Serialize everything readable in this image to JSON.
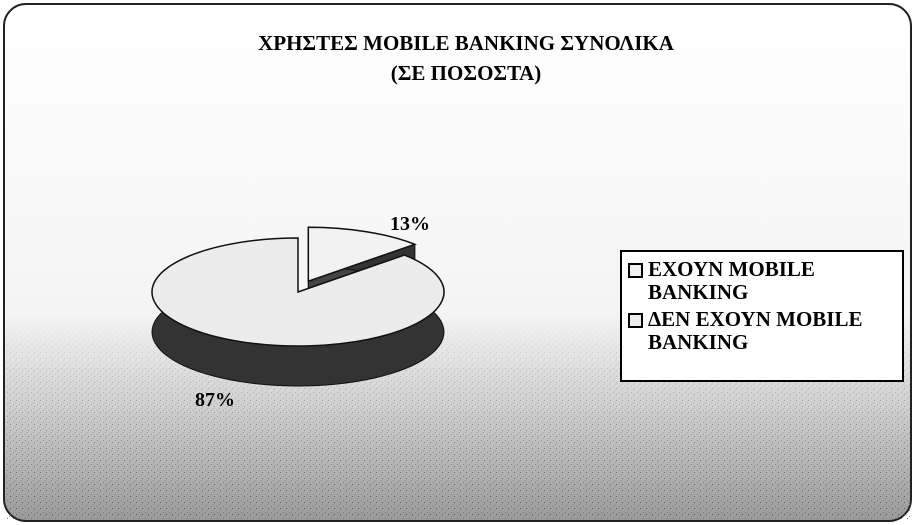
{
  "chart_data": {
    "type": "pie3d",
    "title": "ΧΡΗΣΤΕΣ MOBILE BANKING ΣΥΝΟΛΙΚΑ",
    "subtitle": "(ΣΕ ΠΟΣΟΣΤΑ)",
    "categories": [
      "ΕΧΟΥΝ MOBILE BANKING",
      "ΔΕΝ ΕΧΟΥΝ MOBILE BANKING"
    ],
    "values": [
      13,
      87
    ],
    "value_labels": [
      "13%",
      "87%"
    ],
    "colors": [
      "#f2f2f2",
      "#ececec"
    ],
    "legend": "right"
  }
}
